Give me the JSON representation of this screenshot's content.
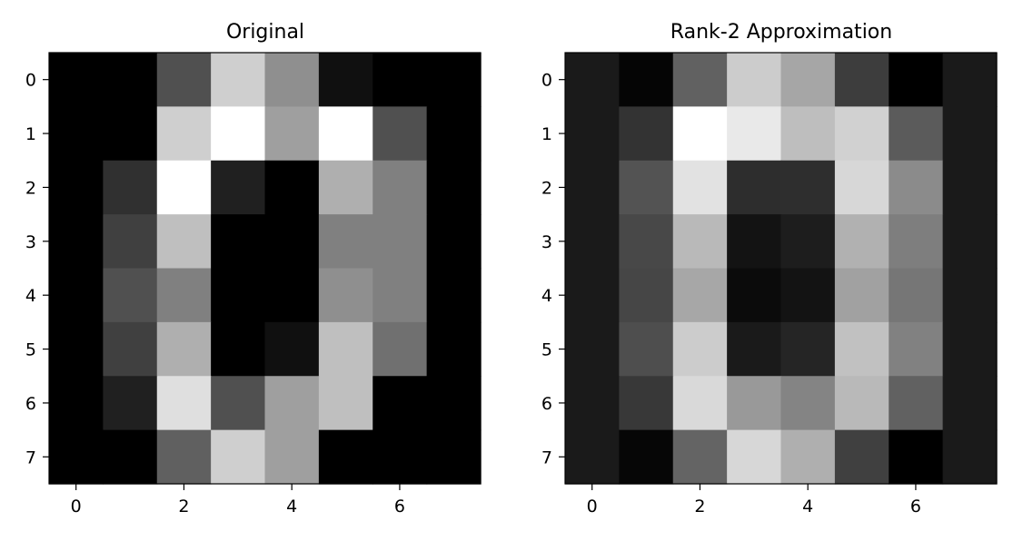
{
  "chart_data": [
    {
      "type": "heatmap",
      "title": "Original",
      "colormap": "gray",
      "vmin": 0,
      "vmax": 16,
      "x_ticks": [
        0,
        2,
        4,
        6
      ],
      "y_ticks": [
        0,
        1,
        2,
        3,
        4,
        5,
        6,
        7
      ],
      "x_tick_labels": [
        "0",
        "2",
        "4",
        "6"
      ],
      "y_tick_labels": [
        "0",
        "1",
        "2",
        "3",
        "4",
        "5",
        "6",
        "7"
      ],
      "values": [
        [
          0,
          0,
          5,
          13,
          9,
          1,
          0,
          0
        ],
        [
          0,
          0,
          13,
          16,
          10,
          16,
          5,
          0
        ],
        [
          0,
          3,
          16,
          2,
          0,
          11,
          8,
          0
        ],
        [
          0,
          4,
          12,
          0,
          0,
          8,
          8,
          0
        ],
        [
          0,
          5,
          8,
          0,
          0,
          9,
          8,
          0
        ],
        [
          0,
          4,
          11,
          0,
          1,
          12,
          7,
          0
        ],
        [
          0,
          2,
          14,
          5,
          10,
          12,
          0,
          0
        ],
        [
          0,
          0,
          6,
          13,
          10,
          0,
          0,
          0
        ]
      ]
    },
    {
      "type": "heatmap",
      "title": "Rank-2 Approximation",
      "colormap": "gray",
      "vmin": 0,
      "vmax": 16,
      "x_ticks": [
        0,
        2,
        4,
        6
      ],
      "y_ticks": [
        0,
        1,
        2,
        3,
        4,
        5,
        6,
        7
      ],
      "x_tick_labels": [
        "0",
        "2",
        "4",
        "6"
      ],
      "y_tick_labels": [
        "0",
        "1",
        "2",
        "3",
        "4",
        "5",
        "6",
        "7"
      ],
      "values": [
        [
          1.6,
          0.3,
          6.1,
          12.8,
          10.4,
          3.8,
          0,
          1.6
        ],
        [
          1.6,
          3.2,
          16,
          14.6,
          11.9,
          13.1,
          5.7,
          1.6
        ],
        [
          1.6,
          5.2,
          14.2,
          2.8,
          2.9,
          13.5,
          8.7,
          1.6
        ],
        [
          1.6,
          4.5,
          11.6,
          1.2,
          1.8,
          11.1,
          7.9,
          1.6
        ],
        [
          1.6,
          4.4,
          10.5,
          0.7,
          1.2,
          10.1,
          7.4,
          1.6
        ],
        [
          1.6,
          4.9,
          12.8,
          1.6,
          2.3,
          12.1,
          8.1,
          1.6
        ],
        [
          1.6,
          3.5,
          13.6,
          9.6,
          8.3,
          11.6,
          6.1,
          1.6
        ],
        [
          1.6,
          0.4,
          6.3,
          13.5,
          11,
          4,
          0,
          1.6
        ]
      ]
    }
  ]
}
